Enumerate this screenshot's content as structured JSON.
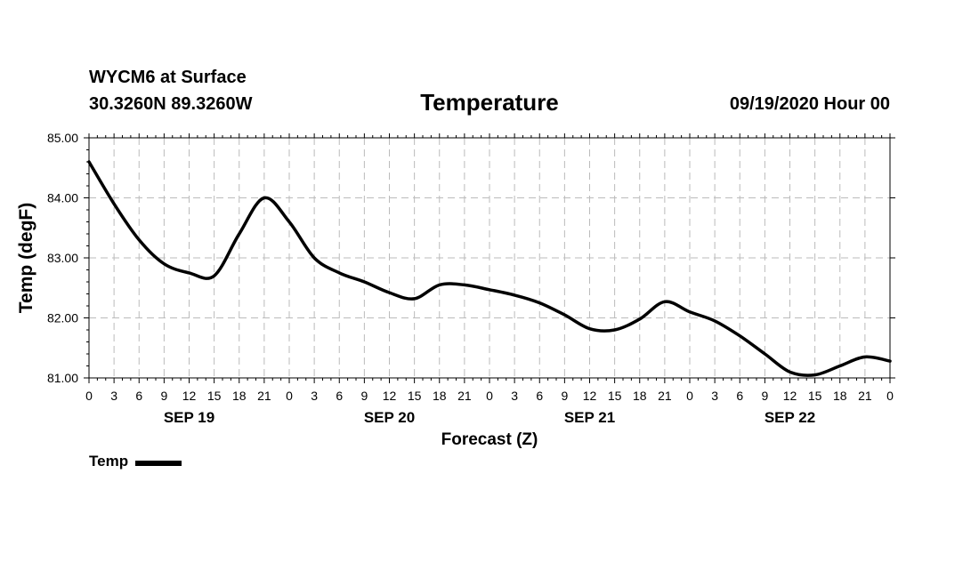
{
  "header": {
    "station": "WYCM6 at Surface",
    "coords": "30.3260N 89.3260W",
    "datetime": "09/19/2020 Hour 00"
  },
  "colors": {
    "line": "#000000",
    "grid": "#bbbbbb",
    "background": "#ffffff"
  },
  "chart_data": {
    "type": "line",
    "title": "Temperature",
    "xlabel": "Forecast (Z)",
    "ylabel": "Temp (degF)",
    "ylim": [
      81.0,
      85.0
    ],
    "yticks": [
      "81.00",
      "82.00",
      "83.00",
      "84.00",
      "85.00"
    ],
    "xlim": [
      0,
      96
    ],
    "xtick_step_hours": 3,
    "xtick_labels": [
      "0",
      "3",
      "6",
      "9",
      "12",
      "15",
      "18",
      "21",
      "0",
      "3",
      "6",
      "9",
      "12",
      "15",
      "18",
      "21",
      "0",
      "3",
      "6",
      "9",
      "12",
      "15",
      "18",
      "21",
      "0",
      "3",
      "6",
      "9",
      "12",
      "15",
      "18",
      "21",
      "0"
    ],
    "day_labels": [
      {
        "hour": 12,
        "label": "SEP 19"
      },
      {
        "hour": 36,
        "label": "SEP 20"
      },
      {
        "hour": 60,
        "label": "SEP 21"
      },
      {
        "hour": 84,
        "label": "SEP 22"
      }
    ],
    "grid": true,
    "legend": "bottom-left",
    "series": [
      {
        "name": "Temp",
        "x": [
          0,
          3,
          6,
          9,
          12,
          15,
          18,
          21,
          24,
          27,
          30,
          33,
          36,
          39,
          42,
          45,
          48,
          51,
          54,
          57,
          60,
          63,
          66,
          69,
          72,
          75,
          78,
          81,
          84,
          87,
          90,
          93,
          96
        ],
        "values": [
          84.6,
          83.9,
          83.3,
          82.9,
          82.75,
          82.7,
          83.4,
          84.0,
          83.6,
          83.0,
          82.75,
          82.6,
          82.42,
          82.32,
          82.55,
          82.55,
          82.47,
          82.38,
          82.25,
          82.05,
          81.82,
          81.8,
          81.98,
          82.27,
          82.1,
          81.95,
          81.7,
          81.4,
          81.1,
          81.05,
          81.2,
          81.35,
          81.28
        ]
      }
    ]
  }
}
